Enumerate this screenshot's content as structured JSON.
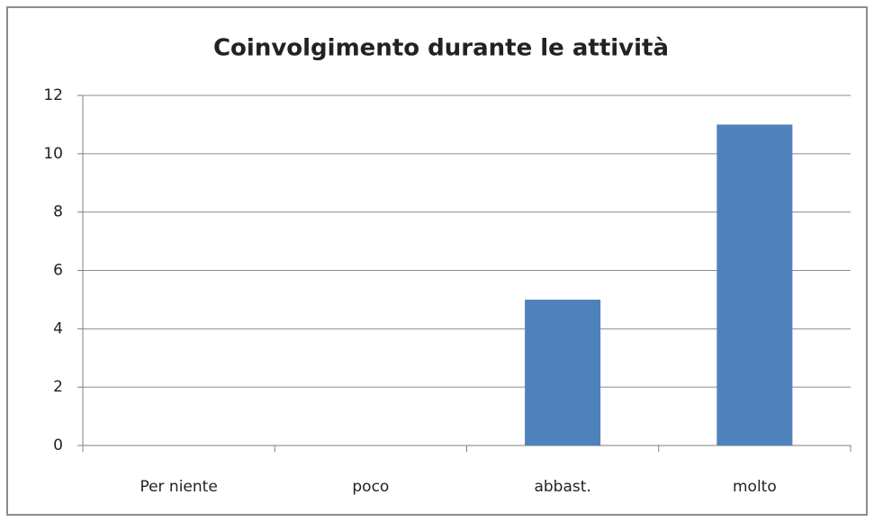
{
  "chart_data": {
    "type": "bar",
    "title": "Coinvolgimento durante le attività",
    "categories": [
      "Per niente",
      "poco",
      "abbast.",
      "molto"
    ],
    "values": [
      0,
      0,
      5,
      11
    ],
    "color": "#4f81bd",
    "ylim": [
      0,
      12
    ],
    "yticks": [
      0,
      2,
      4,
      6,
      8,
      10,
      12
    ],
    "grid": true
  }
}
